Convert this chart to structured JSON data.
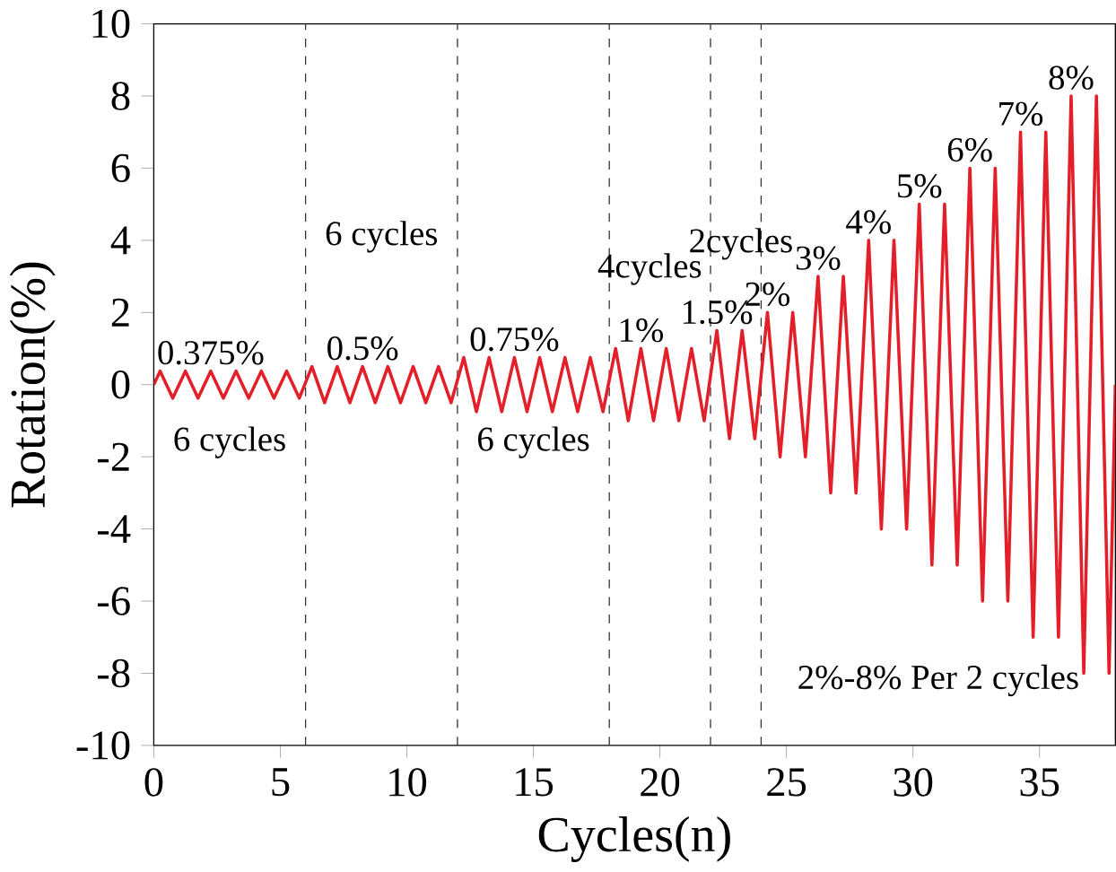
{
  "chart_data": {
    "type": "line",
    "xlabel": "Cycles(n)",
    "ylabel": "Rotation(%)",
    "xlim": [
      0,
      38
    ],
    "ylim": [
      -10,
      10
    ],
    "xticks": [
      0,
      5,
      10,
      15,
      20,
      25,
      30,
      35
    ],
    "yticks": [
      -10,
      -8,
      -6,
      -4,
      -2,
      0,
      2,
      4,
      6,
      8,
      10
    ],
    "grid": false,
    "marker": "none",
    "line_style": "solid",
    "series": [
      {
        "color": "#e3202a",
        "x": [
          0,
          0.25,
          0.75,
          1.25,
          1.75,
          2.25,
          2.75,
          3.25,
          3.75,
          4.25,
          4.75,
          5.25,
          5.75,
          6.25,
          6.75,
          7.25,
          7.75,
          8.25,
          8.75,
          9.25,
          9.75,
          10.25,
          10.75,
          11.25,
          11.75,
          12.25,
          12.75,
          13.25,
          13.75,
          14.25,
          14.75,
          15.25,
          15.75,
          16.25,
          16.75,
          17.25,
          17.75,
          18.25,
          18.75,
          19.25,
          19.75,
          20.25,
          20.75,
          21.25,
          21.75,
          22.25,
          22.75,
          23.25,
          23.75,
          24.25,
          24.75,
          25.25,
          25.75,
          26.25,
          26.75,
          27.25,
          27.75,
          28.25,
          28.75,
          29.25,
          29.75,
          30.25,
          30.75,
          31.25,
          31.75,
          32.25,
          32.75,
          33.25,
          33.75,
          34.25,
          34.75,
          35.25,
          35.75,
          36.25,
          36.75,
          37.25,
          37.75,
          38
        ],
        "values": [
          0,
          0.375,
          -0.375,
          0.375,
          -0.375,
          0.375,
          -0.375,
          0.375,
          -0.375,
          0.375,
          -0.375,
          0.375,
          -0.375,
          0.5,
          -0.5,
          0.5,
          -0.5,
          0.5,
          -0.5,
          0.5,
          -0.5,
          0.5,
          -0.5,
          0.5,
          -0.5,
          0.75,
          -0.75,
          0.75,
          -0.75,
          0.75,
          -0.75,
          0.75,
          -0.75,
          0.75,
          -0.75,
          0.75,
          -0.75,
          1,
          -1,
          1,
          -1,
          1,
          -1,
          1,
          -1,
          1.5,
          -1.5,
          1.5,
          -1.5,
          2,
          -2,
          2,
          -2,
          3,
          -3,
          3,
          -3,
          4,
          -4,
          4,
          -4,
          5,
          -5,
          5,
          -5,
          6,
          -6,
          6,
          -6,
          7,
          -7,
          7,
          -7,
          8,
          -8,
          8,
          -8,
          0
        ]
      }
    ],
    "ref_lines": [
      {
        "axis": "x",
        "value": 6,
        "color": "#333333",
        "line_style": "dashed"
      },
      {
        "axis": "x",
        "value": 12,
        "color": "#333333",
        "line_style": "dashed"
      },
      {
        "axis": "x",
        "value": 18,
        "color": "#333333",
        "line_style": "dashed"
      },
      {
        "axis": "x",
        "value": 22,
        "color": "#333333",
        "line_style": "dashed"
      },
      {
        "axis": "x",
        "value": 24,
        "color": "#333333",
        "line_style": "dashed"
      }
    ],
    "annotations": [
      {
        "text": "0.375%",
        "x": 2.25,
        "y": 0.375
      },
      {
        "text": "0.5%",
        "x": 8.25,
        "y": 0.5
      },
      {
        "text": "0.75%",
        "x": 14.25,
        "y": 0.75
      },
      {
        "text": "1%",
        "x": 19.25,
        "y": 1
      },
      {
        "text": "1.5%",
        "x": 22.25,
        "y": 1.5
      },
      {
        "text": "2%",
        "x": 24.25,
        "y": 2
      },
      {
        "text": "3%",
        "x": 26.25,
        "y": 3
      },
      {
        "text": "4%",
        "x": 28.25,
        "y": 4
      },
      {
        "text": "5%",
        "x": 30.25,
        "y": 5
      },
      {
        "text": "6%",
        "x": 32.25,
        "y": 6
      },
      {
        "text": "7%",
        "x": 34.25,
        "y": 7
      },
      {
        "text": "8%",
        "x": 36.25,
        "y": 8
      },
      "6 cycles",
      "6 cycles",
      "6 cycles",
      "4cycles",
      "2cycles",
      "2%-8% Per 2 cycles"
    ]
  }
}
